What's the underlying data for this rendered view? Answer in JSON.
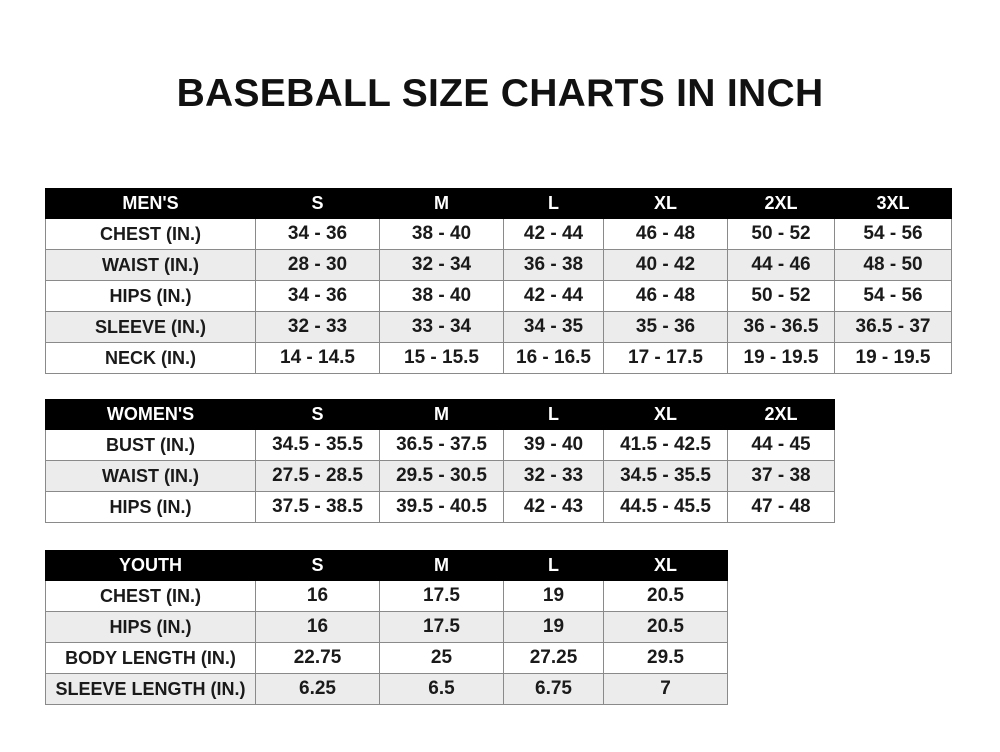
{
  "title": "BASEBALL SIZE CHARTS IN INCH",
  "tables": [
    {
      "id": "men",
      "headers": [
        "MEN'S",
        "S",
        "M",
        "L",
        "XL",
        "2XL",
        "3XL"
      ],
      "rows": [
        [
          "CHEST (IN.)",
          "34 - 36",
          "38 - 40",
          "42 - 44",
          "46 - 48",
          "50 - 52",
          "54 - 56"
        ],
        [
          "WAIST (IN.)",
          "28 - 30",
          "32 - 34",
          "36 - 38",
          "40 - 42",
          "44 - 46",
          "48 - 50"
        ],
        [
          "HIPS (IN.)",
          "34 - 36",
          "38 - 40",
          "42 - 44",
          "46 - 48",
          "50 - 52",
          "54 - 56"
        ],
        [
          "SLEEVE (IN.)",
          "32 - 33",
          "33 - 34",
          "34 - 35",
          "35 - 36",
          "36 - 36.5",
          "36.5 - 37"
        ],
        [
          "NECK (IN.)",
          "14 - 14.5",
          "15 - 15.5",
          "16 - 16.5",
          "17 - 17.5",
          "19 - 19.5",
          "19 - 19.5"
        ]
      ]
    },
    {
      "id": "women",
      "headers": [
        "WOMEN'S",
        "S",
        "M",
        "L",
        "XL",
        "2XL"
      ],
      "rows": [
        [
          "BUST (IN.)",
          "34.5 - 35.5",
          "36.5 - 37.5",
          "39 - 40",
          "41.5 - 42.5",
          "44 - 45"
        ],
        [
          "WAIST (IN.)",
          "27.5 - 28.5",
          "29.5 - 30.5",
          "32 - 33",
          "34.5 - 35.5",
          "37 - 38"
        ],
        [
          "HIPS (IN.)",
          "37.5 - 38.5",
          "39.5 - 40.5",
          "42 - 43",
          "44.5 - 45.5",
          "47 - 48"
        ]
      ]
    },
    {
      "id": "youth",
      "headers": [
        "YOUTH",
        "S",
        "M",
        "L",
        "XL"
      ],
      "rows": [
        [
          "CHEST (IN.)",
          "16",
          "17.5",
          "19",
          "20.5"
        ],
        [
          "HIPS (IN.)",
          "16",
          "17.5",
          "19",
          "20.5"
        ],
        [
          "BODY LENGTH (IN.)",
          "22.75",
          "25",
          "27.25",
          "29.5"
        ],
        [
          "SLEEVE LENGTH (IN.)",
          "6.25",
          "6.5",
          "6.75",
          "7"
        ]
      ]
    }
  ]
}
